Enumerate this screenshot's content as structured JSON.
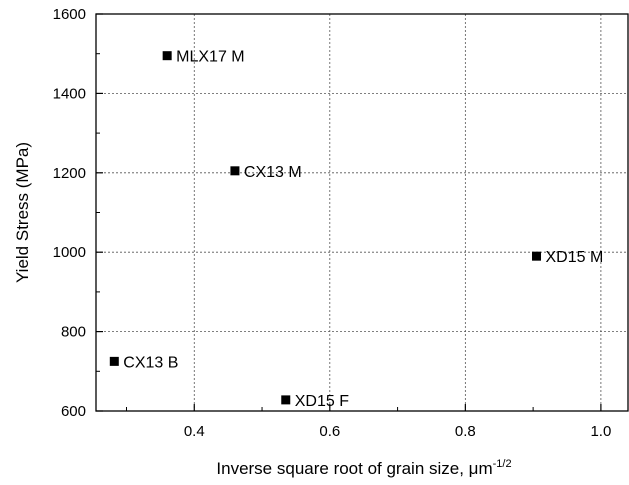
{
  "chart_data": {
    "type": "scatter",
    "title": "",
    "xlabel": "Inverse square root of grain size, μm",
    "xlabel_superscript": "-1/2",
    "ylabel": "Yield Stress (MPa)",
    "xlim": [
      0.255,
      1.04
    ],
    "ylim": [
      600,
      1600
    ],
    "xticks": [
      {
        "value": 0.4,
        "label": "0.4"
      },
      {
        "value": 0.6,
        "label": "0.6"
      },
      {
        "value": 0.8,
        "label": "0.8"
      },
      {
        "value": 1.0,
        "label": "1.0"
      }
    ],
    "yticks": [
      {
        "value": 600,
        "label": "600"
      },
      {
        "value": 800,
        "label": "800"
      },
      {
        "value": 1000,
        "label": "1000"
      },
      {
        "value": 1200,
        "label": "1200"
      },
      {
        "value": 1400,
        "label": "1400"
      },
      {
        "value": 1600,
        "label": "1600"
      }
    ],
    "grid": true,
    "marker_color": "#000000",
    "points": [
      {
        "label": "MLX17 M",
        "x": 0.36,
        "y": 1495
      },
      {
        "label": "CX13 M",
        "x": 0.46,
        "y": 1205
      },
      {
        "label": "XD15 M",
        "x": 0.905,
        "y": 990
      },
      {
        "label": "CX13 B",
        "x": 0.282,
        "y": 725
      },
      {
        "label": "XD15 F",
        "x": 0.535,
        "y": 628
      }
    ]
  }
}
